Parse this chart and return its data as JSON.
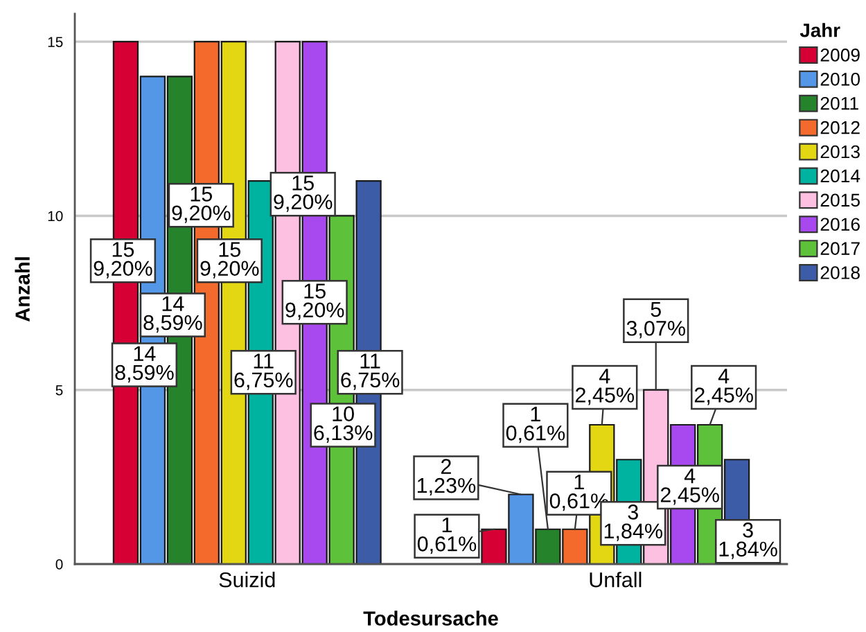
{
  "chart_data": {
    "type": "bar",
    "xlabel": "Todesursache",
    "ylabel": "Anzahl",
    "legend_title": "Jahr",
    "categories": [
      "Suizid",
      "Unfall"
    ],
    "series": [
      {
        "name": "2009",
        "color": "#d70034",
        "values": [
          15,
          1
        ],
        "value_labels": [
          "15\n9,20%",
          "1\n0,61%"
        ]
      },
      {
        "name": "2010",
        "color": "#5397e6",
        "values": [
          14,
          2
        ],
        "value_labels": [
          "14\n8,59%",
          "2\n1,23%"
        ]
      },
      {
        "name": "2011",
        "color": "#24832b",
        "values": [
          14,
          1
        ],
        "value_labels": [
          "14\n8,59%",
          "1\n0,61%"
        ]
      },
      {
        "name": "2012",
        "color": "#f36a2c",
        "values": [
          15,
          1
        ],
        "value_labels": [
          "15\n9,20%",
          "1\n0,61%"
        ]
      },
      {
        "name": "2013",
        "color": "#e2d712",
        "values": [
          15,
          4
        ],
        "value_labels": [
          "15\n9,20%",
          "4\n2,45%"
        ]
      },
      {
        "name": "2014",
        "color": "#00b3a0",
        "values": [
          11,
          3
        ],
        "value_labels": [
          "11\n6,75%",
          "3\n1,84%"
        ]
      },
      {
        "name": "2015",
        "color": "#fdc0e0",
        "values": [
          15,
          5
        ],
        "value_labels": [
          "15\n9,20%",
          "5\n3,07%"
        ]
      },
      {
        "name": "2016",
        "color": "#a849ef",
        "values": [
          15,
          4
        ],
        "value_labels": [
          "15\n9,20%",
          "4\n2,45%"
        ]
      },
      {
        "name": "2017",
        "color": "#5dc239",
        "values": [
          10,
          4
        ],
        "value_labels": [
          "10\n6,13%",
          "4\n2,45%"
        ]
      },
      {
        "name": "2018",
        "color": "#3c5ca8",
        "values": [
          11,
          3
        ],
        "value_labels": [
          "11\n6,75%",
          "3\n1,84%"
        ]
      }
    ],
    "ylim": [
      0,
      15.8
    ],
    "yticks": [
      0,
      5,
      10,
      15
    ],
    "grid": "y",
    "legend": "right"
  }
}
